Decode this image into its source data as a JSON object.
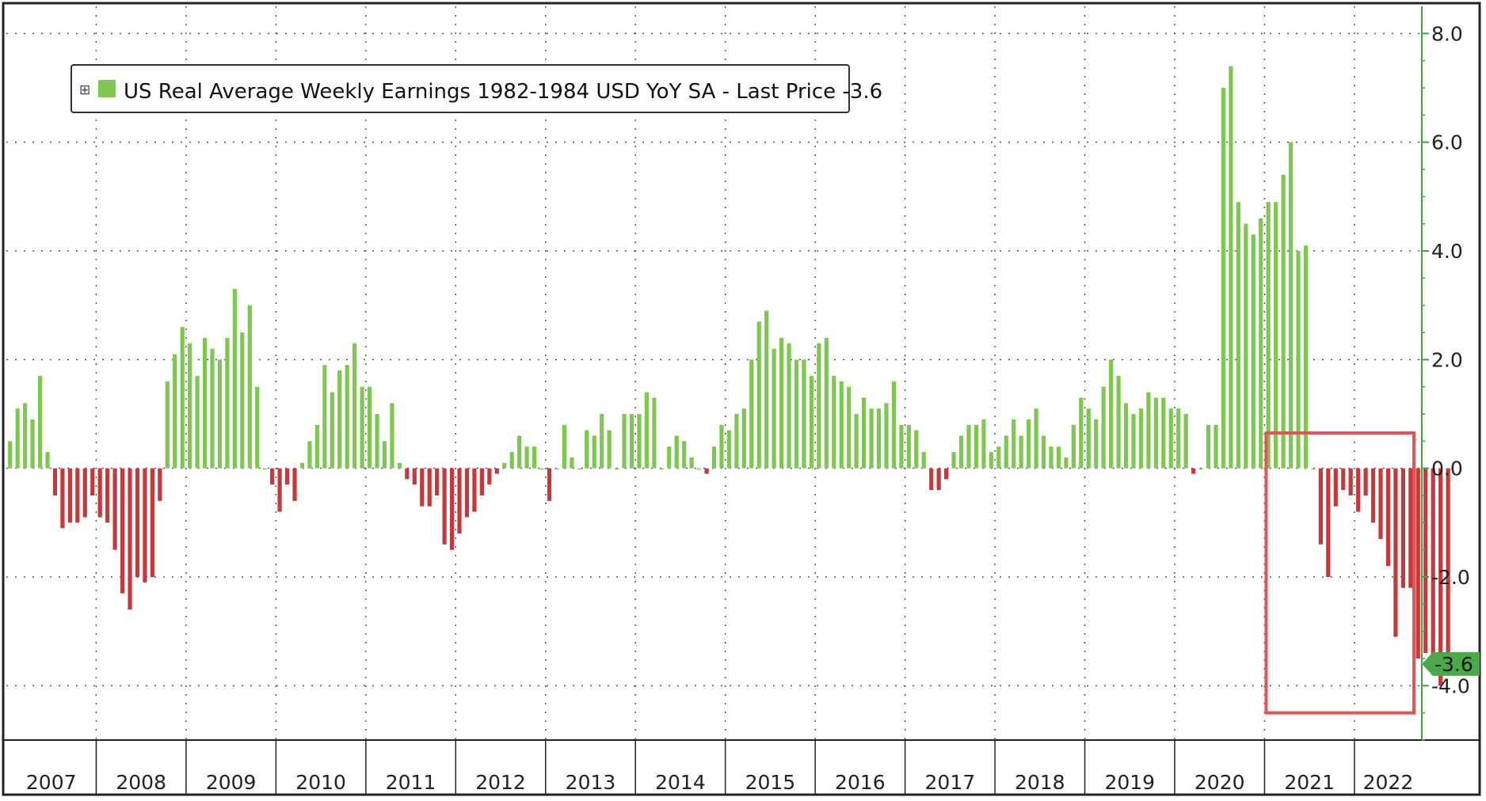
{
  "chart_data": {
    "type": "bar",
    "legend": {
      "text": "US Real Average Weekly Earnings 1982-1984 USD YoY SA - Last Price -3.6",
      "marker": "⊞",
      "placement": "top-left"
    },
    "last_price_label": "-3.6",
    "last_value": -3.6,
    "y_axis": {
      "position": "right",
      "ticks": [
        "8.0",
        "6.0",
        "4.0",
        "2.0",
        "0.0",
        "-2.0",
        "-4.0"
      ],
      "tick_values": [
        8,
        6,
        4,
        2,
        0,
        -2,
        -4
      ],
      "ylim": [
        -5.0,
        8.5
      ]
    },
    "x_axis": {
      "years": [
        "2007",
        "2008",
        "2009",
        "2010",
        "2011",
        "2012",
        "2013",
        "2014",
        "2015",
        "2016",
        "2017",
        "2018",
        "2019",
        "2020",
        "2021",
        "2022"
      ],
      "start": 2007.0,
      "end": 2022.75
    },
    "grid": true,
    "colors": {
      "positive": "#7ec850",
      "negative": "#c8383a",
      "axis": "#39a839",
      "highlight_box": "#e05555",
      "last_price_tag": "#4aaa4a"
    },
    "highlight_range": [
      2021.0,
      2022.75
    ],
    "series": [
      {
        "start": "2007-01",
        "frequency": "monthly",
        "values": [
          0.5,
          1.1,
          1.2,
          0.9,
          1.7,
          0.3,
          -0.5,
          -1.1,
          -1.0,
          -1.0,
          -0.9,
          -0.5,
          -0.9,
          -1.0,
          -1.5,
          -2.3,
          -2.6,
          -2.0,
          -2.1,
          -2.0,
          -0.6,
          1.6,
          2.1,
          2.6,
          2.3,
          1.7,
          2.4,
          2.2,
          2.0,
          2.4,
          3.3,
          2.5,
          3.0,
          1.5,
          0.0,
          -0.3,
          -0.8,
          -0.3,
          -0.6,
          0.1,
          0.5,
          0.8,
          1.9,
          1.4,
          1.8,
          1.9,
          2.3,
          1.5,
          1.5,
          1.0,
          0.5,
          1.2,
          0.1,
          -0.2,
          -0.3,
          -0.7,
          -0.7,
          -0.5,
          -1.4,
          -1.5,
          -1.2,
          -0.9,
          -0.8,
          -0.5,
          -0.3,
          -0.1,
          0.1,
          0.3,
          0.6,
          0.4,
          0.4,
          0.0,
          -0.6,
          0.0,
          0.8,
          0.2,
          0.0,
          0.7,
          0.6,
          1.0,
          0.7,
          0.0,
          1.0,
          1.0,
          1.0,
          1.4,
          1.3,
          0.0,
          0.4,
          0.6,
          0.5,
          0.2,
          0.0,
          -0.1,
          0.4,
          0.8,
          0.7,
          1.0,
          1.1,
          2.0,
          2.7,
          2.9,
          2.2,
          2.4,
          2.3,
          2.0,
          2.0,
          1.7,
          2.3,
          2.4,
          1.7,
          1.6,
          1.5,
          1.0,
          1.3,
          1.1,
          1.1,
          1.2,
          1.6,
          0.8,
          0.8,
          0.7,
          0.3,
          -0.4,
          -0.4,
          -0.2,
          0.3,
          0.6,
          0.8,
          0.8,
          0.9,
          0.3,
          0.4,
          0.6,
          0.9,
          0.6,
          0.9,
          1.1,
          0.6,
          0.4,
          0.4,
          0.2,
          0.8,
          1.3,
          1.1,
          0.9,
          1.5,
          2.0,
          1.7,
          1.2,
          1.0,
          1.1,
          1.4,
          1.3,
          1.3,
          1.1,
          1.1,
          1.0,
          -0.1,
          0.0,
          0.8,
          0.8,
          7.0,
          7.4,
          4.9,
          4.5,
          4.3,
          4.6,
          4.9,
          4.9,
          5.4,
          6.0,
          4.0,
          4.1,
          0.0,
          -1.4,
          -2.0,
          -0.7,
          -0.4,
          -0.5,
          -0.8,
          -0.5,
          -1.0,
          -1.3,
          -1.8,
          -3.1,
          -2.2,
          -2.2,
          -3.5,
          -3.4,
          -3.8,
          -4.0,
          -3.6
        ]
      }
    ]
  }
}
